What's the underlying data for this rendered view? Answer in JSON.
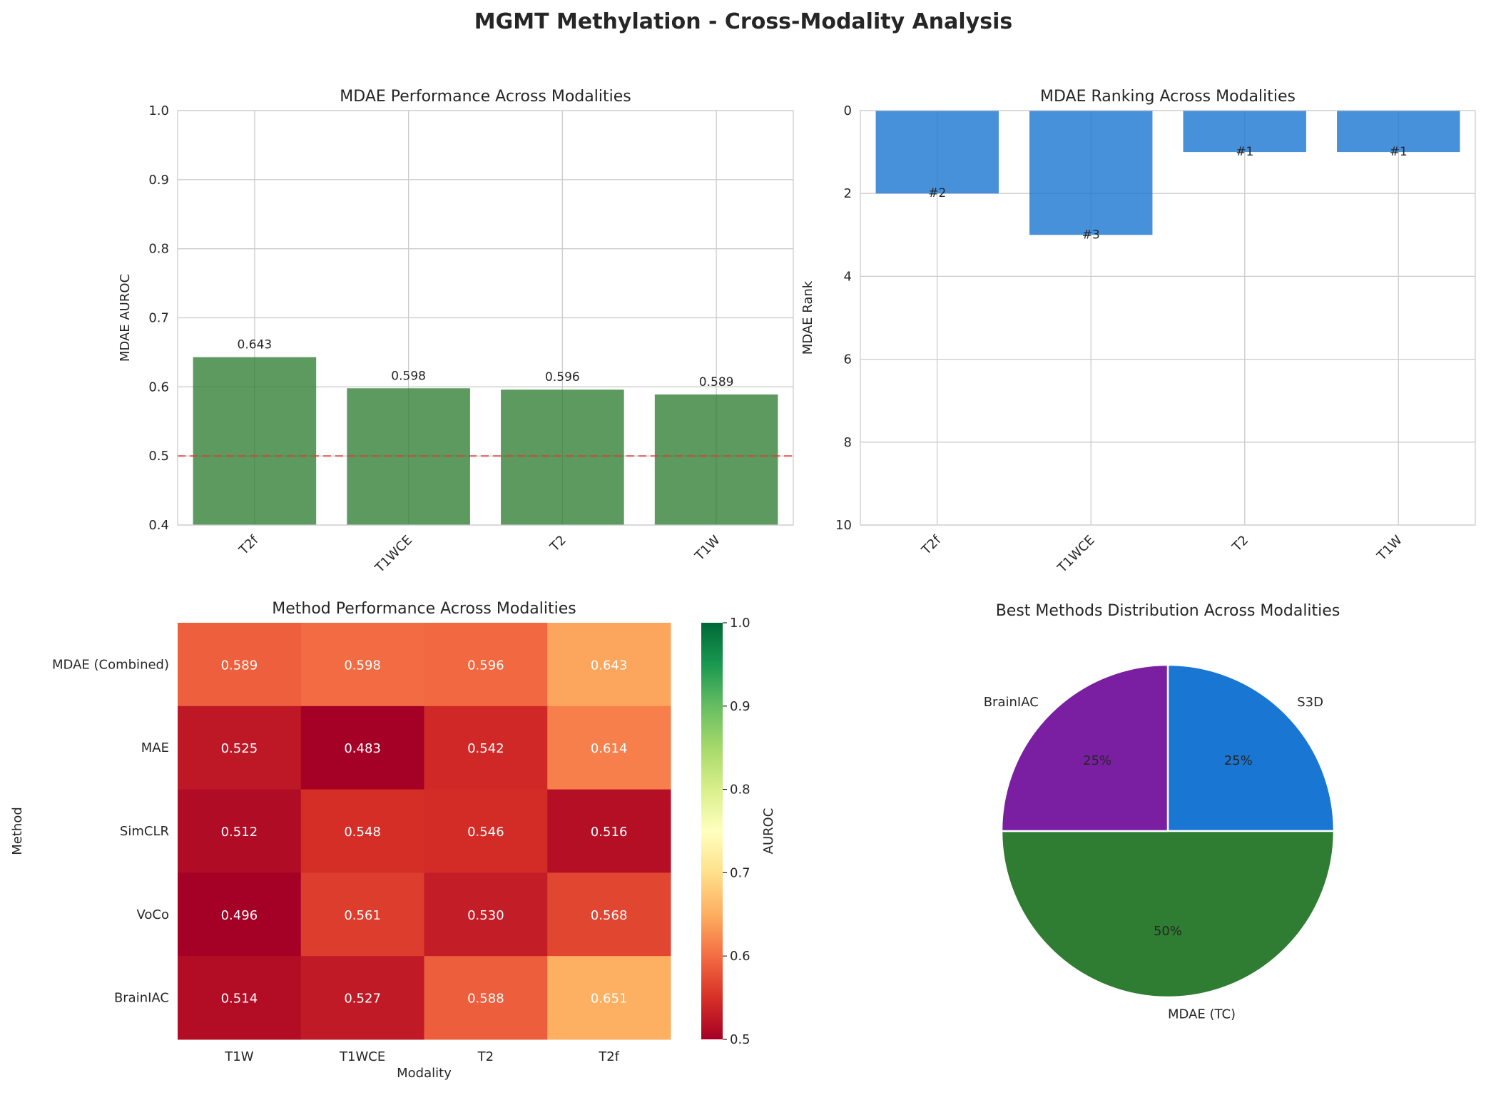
{
  "suptitle": "MGMT Methylation - Cross-Modality Analysis",
  "chart_data": [
    {
      "type": "bar",
      "title": "MDAE Performance Across Modalities",
      "xlabel": "",
      "ylabel": "MDAE AUROC",
      "categories": [
        "T2f",
        "T1WCE",
        "T2",
        "T1W"
      ],
      "values": [
        0.643,
        0.598,
        0.596,
        0.589
      ],
      "data_labels": [
        "0.643",
        "0.598",
        "0.596",
        "0.589"
      ],
      "ylim": [
        0.4,
        1.0
      ],
      "yticks": [
        0.4,
        0.5,
        0.6,
        0.7,
        0.8,
        0.9,
        1.0
      ],
      "ytick_labels": [
        "0.4",
        "0.5",
        "0.6",
        "0.7",
        "0.8",
        "0.9",
        "1.0"
      ],
      "reference_line": 0.5,
      "grid": true,
      "colors": {
        "bar": "#2e7d32",
        "reference": "#e53935"
      }
    },
    {
      "type": "bar",
      "title": "MDAE Ranking Across Modalities",
      "xlabel": "",
      "ylabel": "MDAE Rank",
      "categories": [
        "T2f",
        "T1WCE",
        "T2",
        "T1W"
      ],
      "values": [
        2,
        3,
        1,
        1
      ],
      "data_labels": [
        "#2",
        "#3",
        "#1",
        "#1"
      ],
      "ylim": [
        10,
        0
      ],
      "inverted_y": true,
      "yticks": [
        0,
        2,
        4,
        6,
        8,
        10
      ],
      "ytick_labels": [
        "0",
        "2",
        "4",
        "6",
        "8",
        "10"
      ],
      "grid": true,
      "colors": {
        "bar": "#1976d2"
      }
    },
    {
      "type": "heatmap",
      "title": "Method Performance Across Modalities",
      "xlabel": "Modality",
      "ylabel": "Method",
      "columns": [
        "T1W",
        "T1WCE",
        "T2",
        "T2f"
      ],
      "rows": [
        "MDAE (Combined)",
        "MAE",
        "SimCLR",
        "VoCo",
        "BrainIAC"
      ],
      "values": [
        [
          0.589,
          0.598,
          0.596,
          0.643
        ],
        [
          0.525,
          0.483,
          0.542,
          0.614
        ],
        [
          0.512,
          0.548,
          0.546,
          0.516
        ],
        [
          0.496,
          0.561,
          0.53,
          0.568
        ],
        [
          0.514,
          0.527,
          0.588,
          0.651
        ]
      ],
      "cell_labels": [
        [
          "0.589",
          "0.598",
          "0.596",
          "0.643"
        ],
        [
          "0.525",
          "0.483",
          "0.542",
          "0.614"
        ],
        [
          "0.512",
          "0.548",
          "0.546",
          "0.516"
        ],
        [
          "0.496",
          "0.561",
          "0.530",
          "0.568"
        ],
        [
          "0.514",
          "0.527",
          "0.588",
          "0.651"
        ]
      ],
      "colorbar": {
        "label": "AUROC",
        "vmin": 0.5,
        "vmax": 1.0,
        "ticks": [
          0.5,
          0.6,
          0.7,
          0.8,
          0.9,
          1.0
        ],
        "tick_labels": [
          "0.5",
          "0.6",
          "0.7",
          "0.8",
          "0.9",
          "1.0"
        ],
        "colormap": "RdYlGn"
      }
    },
    {
      "type": "pie",
      "title": "Best Methods Distribution Across Modalities",
      "labels": [
        "S3D",
        "MDAE (TC)",
        "BrainIAC"
      ],
      "values": [
        25,
        50,
        25
      ],
      "pct_labels": [
        "25%",
        "50%",
        "25%"
      ],
      "colors": [
        "#1976d2",
        "#2e7d32",
        "#7b1fa2"
      ]
    }
  ]
}
